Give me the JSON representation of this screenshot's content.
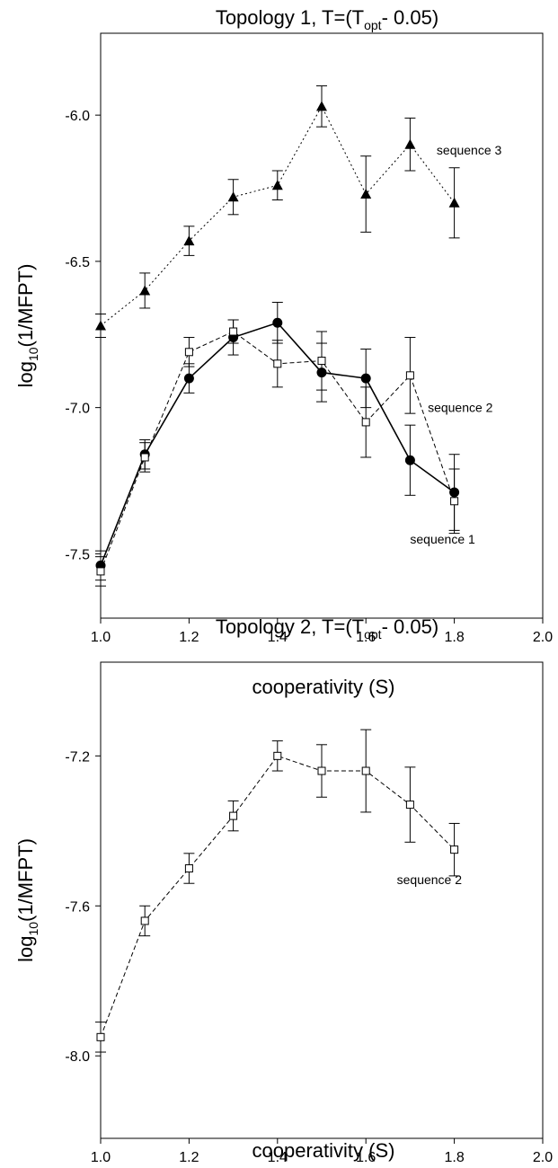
{
  "chart_data": [
    {
      "type": "line",
      "title": {
        "main": "Topology 1, T=(T",
        "sub": "opt",
        "tail": "- 0.05)"
      },
      "xlabel": "cooperativity (S)",
      "ylabel": {
        "main": "log",
        "sub": "10",
        "tail": "(1/MFPT)"
      },
      "xlim": [
        1.0,
        2.0
      ],
      "ylim": [
        -7.72,
        -5.72
      ],
      "xticks": [
        1.0,
        1.2,
        1.4,
        1.6,
        1.8,
        2.0
      ],
      "xtick_labels": [
        "1.0",
        "1.2",
        "1.4",
        "1.6",
        "1.8",
        "2.0"
      ],
      "yticks": [
        -7.5,
        -7.0,
        -6.5,
        -6.0
      ],
      "ytick_labels": [
        "-7.5",
        "-7.0",
        "-6.5",
        "-6.0"
      ],
      "grid": false,
      "series": [
        {
          "name": "sequence 1",
          "marker": "filled-circle",
          "line": "solid",
          "x": [
            1.0,
            1.1,
            1.2,
            1.3,
            1.4,
            1.5,
            1.6,
            1.7,
            1.8
          ],
          "y": [
            -7.54,
            -7.16,
            -6.9,
            -6.76,
            -6.71,
            -6.88,
            -6.9,
            -7.18,
            -7.29
          ],
          "err": [
            0.05,
            0.05,
            0.05,
            0.06,
            0.07,
            0.1,
            0.1,
            0.12,
            0.13
          ],
          "label_at": [
            1.7,
            -7.45
          ]
        },
        {
          "name": "sequence 2",
          "marker": "open-square",
          "line": "dashed",
          "x": [
            1.0,
            1.1,
            1.2,
            1.3,
            1.4,
            1.5,
            1.6,
            1.7,
            1.8
          ],
          "y": [
            -7.56,
            -7.17,
            -6.81,
            -6.74,
            -6.85,
            -6.84,
            -7.05,
            -6.89,
            -7.32
          ],
          "err": [
            0.05,
            0.05,
            0.05,
            0.04,
            0.08,
            0.1,
            0.12,
            0.13,
            0.11
          ],
          "label_at": [
            1.74,
            -7.0
          ]
        },
        {
          "name": "sequence 3",
          "marker": "filled-triangle",
          "line": "dotted",
          "x": [
            1.0,
            1.1,
            1.2,
            1.3,
            1.4,
            1.5,
            1.6,
            1.7,
            1.8
          ],
          "y": [
            -6.72,
            -6.6,
            -6.43,
            -6.28,
            -6.24,
            -5.97,
            -6.27,
            -6.1,
            -6.3
          ],
          "err": [
            0.04,
            0.06,
            0.05,
            0.06,
            0.05,
            0.07,
            0.13,
            0.09,
            0.12
          ],
          "label_at": [
            1.76,
            -6.12
          ]
        }
      ]
    },
    {
      "type": "line",
      "title": {
        "main": "Topology 2, T=(T",
        "sub": "opt",
        "tail": "- 0.05)"
      },
      "xlabel": "cooperativity (S)",
      "ylabel": {
        "main": "log",
        "sub": "10",
        "tail": "(1/MFPT)"
      },
      "xlim": [
        1.0,
        2.0
      ],
      "ylim": [
        -8.22,
        -6.95
      ],
      "xticks": [
        1.0,
        1.2,
        1.4,
        1.6,
        1.8,
        2.0
      ],
      "xtick_labels": [
        "1.0",
        "1.2",
        "1.4",
        "1.6",
        "1.8",
        "2.0"
      ],
      "yticks": [
        -8.0,
        -7.6,
        -7.2
      ],
      "ytick_labels": [
        "-8.0",
        "-7.6",
        "-7.2"
      ],
      "grid": false,
      "series": [
        {
          "name": "sequence 2",
          "marker": "open-square",
          "line": "dashed",
          "x": [
            1.0,
            1.1,
            1.2,
            1.3,
            1.4,
            1.5,
            1.6,
            1.7,
            1.8
          ],
          "y": [
            -7.95,
            -7.64,
            -7.5,
            -7.36,
            -7.2,
            -7.24,
            -7.24,
            -7.33,
            -7.45
          ],
          "err": [
            0.04,
            0.04,
            0.04,
            0.04,
            0.04,
            0.07,
            0.11,
            0.1,
            0.07
          ],
          "label_at": [
            1.67,
            -7.53
          ]
        }
      ]
    }
  ]
}
